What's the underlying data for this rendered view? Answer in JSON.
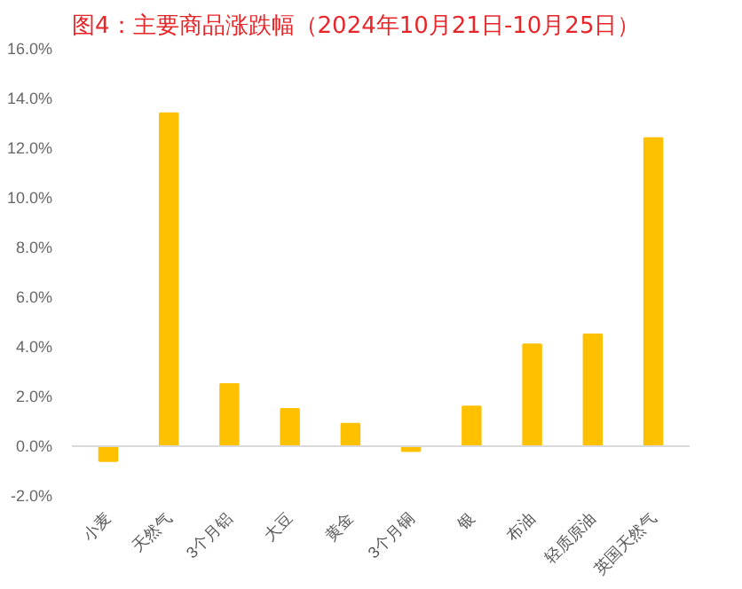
{
  "chart_data": {
    "type": "bar",
    "title": "图4：主要商品涨跌幅（2024年10月21日-10月25日）",
    "categories": [
      "小麦",
      "天然气",
      "3个月铝",
      "大豆",
      "黄金",
      "3个月铜",
      "银",
      "布油",
      "轻质原油",
      "英国天然气"
    ],
    "values": [
      -0.6,
      13.4,
      2.5,
      1.5,
      0.9,
      -0.2,
      1.6,
      4.1,
      4.5,
      12.4
    ],
    "color": "#ffc000",
    "ylim": [
      -2,
      16
    ],
    "yticks": [
      {
        "value": -2,
        "label": "-2.0%"
      },
      {
        "value": 0,
        "label": "0.0%"
      },
      {
        "value": 2,
        "label": "2.0%"
      },
      {
        "value": 4,
        "label": "4.0%"
      },
      {
        "value": 6,
        "label": "6.0%"
      },
      {
        "value": 8,
        "label": "8.0%"
      },
      {
        "value": 10,
        "label": "10.0%"
      },
      {
        "value": 12,
        "label": "12.0%"
      },
      {
        "value": 14,
        "label": "14.0%"
      },
      {
        "value": 16,
        "label": "16.0%"
      }
    ],
    "data_labels": false
  }
}
